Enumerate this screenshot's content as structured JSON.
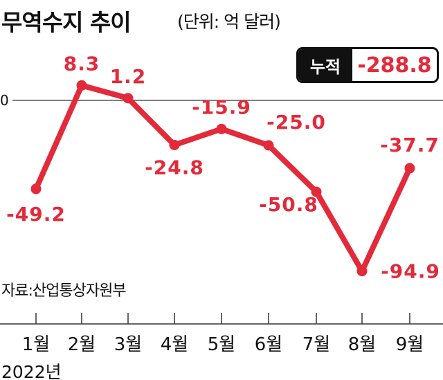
{
  "title": "무역수지 추이",
  "unit": "(단위: 억 달러)",
  "source": "자료:산업통상자원부",
  "year": "2022년",
  "cumulative": {
    "label": "누적",
    "value": "-288.8"
  },
  "colors": {
    "line": "#e32a3a",
    "text": "#111111",
    "axis": "#333333"
  },
  "chart_data": {
    "type": "line",
    "title": "무역수지 추이",
    "unit": "(단위: 억 달러)",
    "categories": [
      "1월",
      "2월",
      "3월",
      "4월",
      "5월",
      "6월",
      "7월",
      "8월",
      "9월"
    ],
    "values": [
      -49.2,
      8.3,
      1.2,
      -24.8,
      -15.9,
      -25.0,
      -50.8,
      -94.9,
      -37.7
    ],
    "data_labels": [
      "-49.2",
      "8.3",
      "1.2",
      "-24.8",
      "-15.9",
      "-25.0",
      "-50.8",
      "-94.9",
      "-37.7"
    ],
    "ytick_labels": [
      "0"
    ],
    "grid": false,
    "ylim": [
      -94.9,
      8.3
    ]
  }
}
